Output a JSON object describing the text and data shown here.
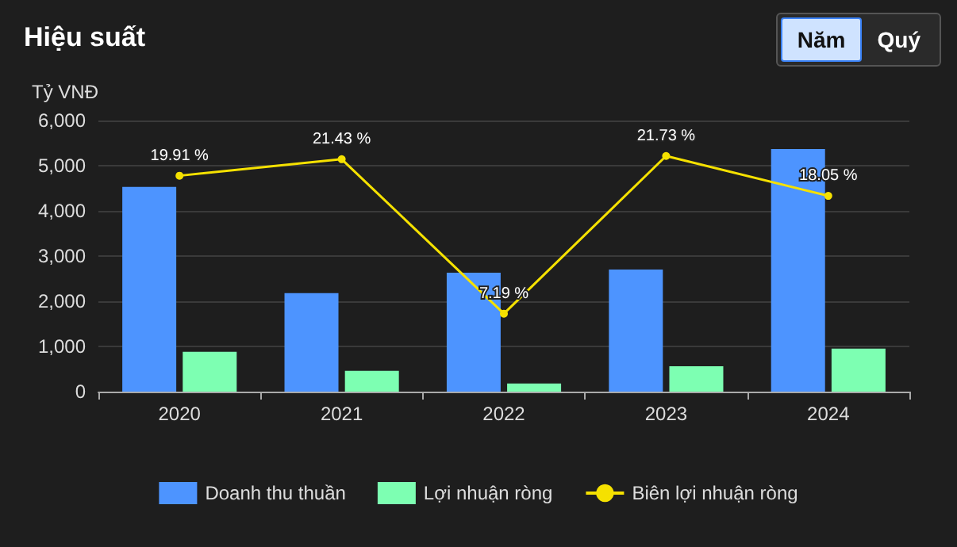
{
  "chart_data": {
    "type": "bar",
    "title": "Hiệu suất",
    "ylabel": "Tỷ VNĐ",
    "annotations": [
      "Năm",
      "Quý"
    ],
    "categories": [
      "2020",
      "2021",
      "2022",
      "2023",
      "2024"
    ],
    "series": [
      {
        "name": "Doanh thu thuần",
        "color": "#4d94ff",
        "values": [
          4530,
          2180,
          2630,
          2700,
          5370
        ]
      },
      {
        "name": "Lợi nhuận ròng",
        "color": "#7dffb2",
        "values": [
          880,
          460,
          180,
          560,
          950
        ]
      },
      {
        "name": "Biên lợi nhuận ròng",
        "type": "line",
        "axis": "y2",
        "color": "#f5e100",
        "marker": "circle",
        "line_style": "solid",
        "values": [
          19.91,
          21.43,
          7.19,
          21.73,
          18.05
        ],
        "value_labels": [
          "19.91 %",
          "21.43 %",
          "7.19 %",
          "21.73 %",
          "18.05 %"
        ]
      }
    ],
    "ylim": [
      0,
      6000
    ],
    "yticks": [
      {
        "value": 0,
        "label": "0"
      },
      {
        "value": 1000,
        "label": "1,000"
      },
      {
        "value": 2000,
        "label": "2,000"
      },
      {
        "value": 3000,
        "label": "3,000"
      },
      {
        "value": 4000,
        "label": "4,000"
      },
      {
        "value": 5000,
        "label": "5,000"
      },
      {
        "value": 6000,
        "label": "6,000"
      }
    ],
    "y2lim": [
      0,
      25
    ],
    "grid": "y",
    "legend": "bottom"
  }
}
